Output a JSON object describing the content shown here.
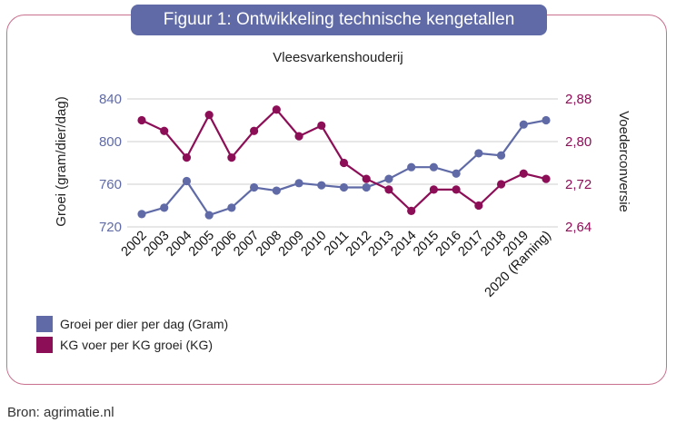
{
  "title": "Figuur 1: Ontwikkeling technische kengetallen",
  "source": "Bron: agrimatie.nl",
  "chart_data": {
    "type": "line",
    "subtitle": "Vleesvarkenshouderij",
    "ylabel_left": "Groei (gram/dier/dag)",
    "ylabel_right": "Voederconversie",
    "ylim_left": [
      720,
      840
    ],
    "yticks_left": [
      720,
      760,
      800,
      840
    ],
    "ytick_labels_left": [
      "720",
      "760",
      "800",
      "840"
    ],
    "ylim_right": [
      2.64,
      2.88
    ],
    "yticks_right": [
      2.64,
      2.72,
      2.8,
      2.88
    ],
    "ytick_labels_right": [
      "2,64",
      "2,72",
      "2,80",
      "2,88"
    ],
    "categories": [
      "2002",
      "2003",
      "2004",
      "2005",
      "2006",
      "2007",
      "2008",
      "2009",
      "2010",
      "2011",
      "2012",
      "2013",
      "2014",
      "2015",
      "2016",
      "2017",
      "2018",
      "2019",
      "2020 (Raming)"
    ],
    "series": [
      {
        "name": "Groei per dier per dag (Gram)",
        "axis": "left",
        "color": "#5f6aa6",
        "values": [
          732,
          738,
          763,
          731,
          738,
          757,
          754,
          761,
          759,
          757,
          757,
          765,
          776,
          776,
          770,
          789,
          787,
          816,
          820
        ]
      },
      {
        "name": "KG voer per KG groei (KG)",
        "axis": "right",
        "color": "#8c0e57",
        "values": [
          2.84,
          2.82,
          2.77,
          2.85,
          2.77,
          2.82,
          2.86,
          2.81,
          2.83,
          2.76,
          2.73,
          2.71,
          2.67,
          2.71,
          2.71,
          2.68,
          2.72,
          2.74,
          2.73
        ]
      }
    ],
    "legend_position": "bottom-left"
  }
}
